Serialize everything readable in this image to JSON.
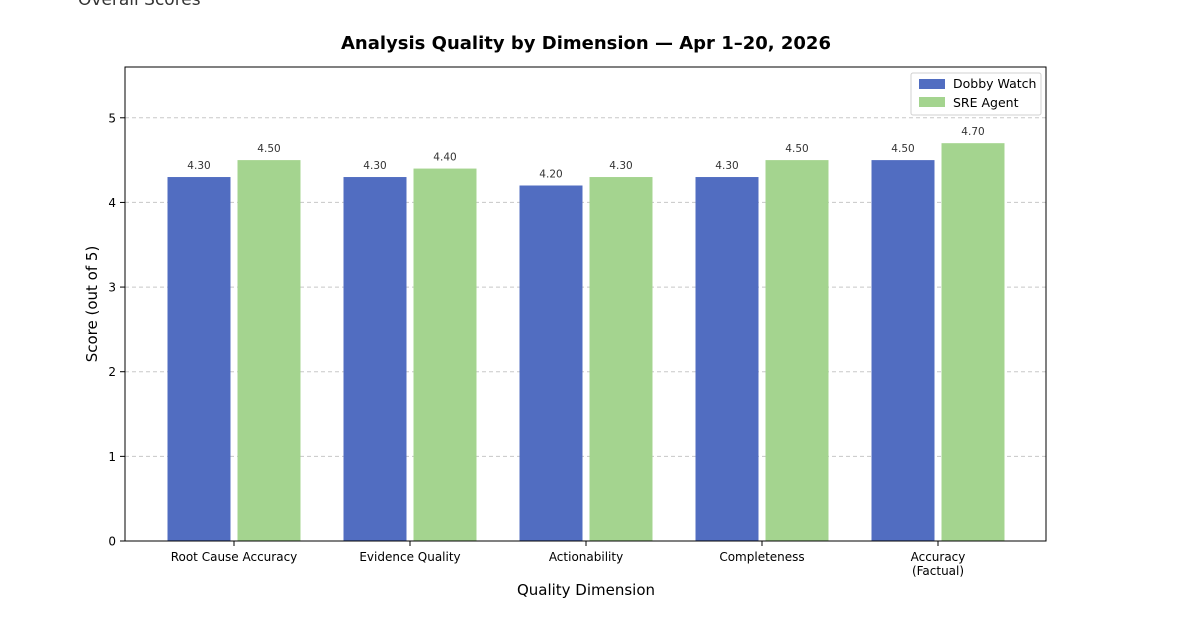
{
  "page": {
    "header_text": "Overall Scores"
  },
  "colors": {
    "dobby_watch": "#516dc1",
    "sre_agent": "#a4d48f",
    "grid": "#c8c8c8",
    "axis": "#000000"
  },
  "chart_data": {
    "type": "bar",
    "title": "Analysis Quality by Dimension — Apr 1–20, 2026",
    "xlabel": "Quality Dimension",
    "ylabel": "Score (out of 5)",
    "ylim": [
      0,
      5.6
    ],
    "yticks": [
      0,
      1,
      2,
      3,
      4,
      5
    ],
    "grid": true,
    "legend_position": "top-right",
    "categories": [
      [
        "Root Cause Accuracy"
      ],
      [
        "Evidence Quality"
      ],
      [
        "Actionability"
      ],
      [
        "Completeness"
      ],
      [
        "Accuracy",
        "(Factual)"
      ]
    ],
    "series": [
      {
        "name": "Dobby Watch",
        "values": [
          4.3,
          4.3,
          4.2,
          4.3,
          4.5
        ],
        "labels": [
          "4.30",
          "4.30",
          "4.20",
          "4.30",
          "4.50"
        ]
      },
      {
        "name": "SRE Agent",
        "values": [
          4.5,
          4.4,
          4.3,
          4.5,
          4.7
        ],
        "labels": [
          "4.50",
          "4.40",
          "4.30",
          "4.50",
          "4.70"
        ]
      }
    ]
  }
}
